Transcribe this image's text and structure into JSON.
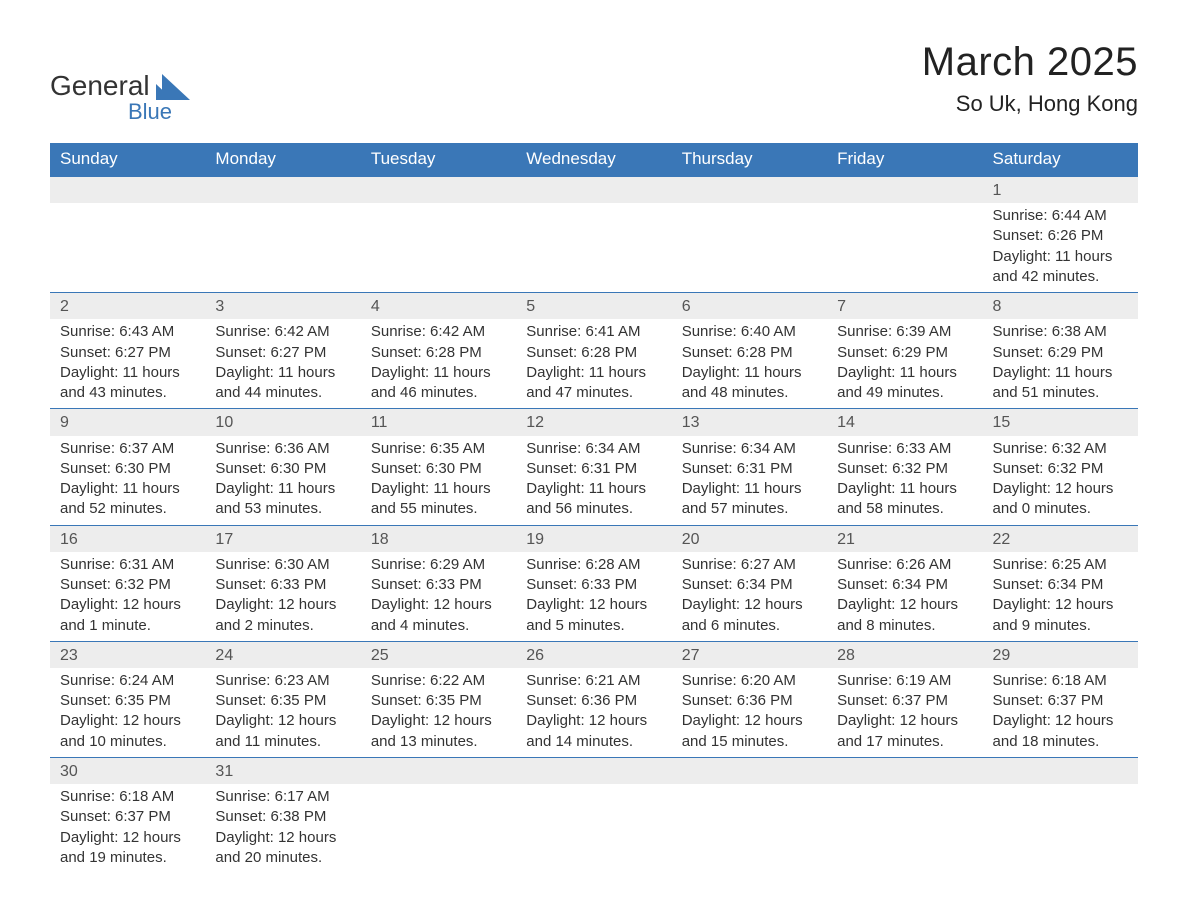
{
  "logo": {
    "text1": "General",
    "text2": "Blue",
    "blue": "#3a77b7"
  },
  "title": "March 2025",
  "subtitle": "So Uk, Hong Kong",
  "colors": {
    "header_bg": "#3a77b7",
    "header_text": "#ffffff",
    "daynum_bg": "#ededed",
    "cell_border": "#3a77b7",
    "body_text": "#333333",
    "page_bg": "#ffffff"
  },
  "day_headers": [
    "Sunday",
    "Monday",
    "Tuesday",
    "Wednesday",
    "Thursday",
    "Friday",
    "Saturday"
  ],
  "weeks": [
    [
      null,
      null,
      null,
      null,
      null,
      null,
      {
        "n": "1",
        "sunrise": "6:44 AM",
        "sunset": "6:26 PM",
        "daylight": "11 hours and 42 minutes."
      }
    ],
    [
      {
        "n": "2",
        "sunrise": "6:43 AM",
        "sunset": "6:27 PM",
        "daylight": "11 hours and 43 minutes."
      },
      {
        "n": "3",
        "sunrise": "6:42 AM",
        "sunset": "6:27 PM",
        "daylight": "11 hours and 44 minutes."
      },
      {
        "n": "4",
        "sunrise": "6:42 AM",
        "sunset": "6:28 PM",
        "daylight": "11 hours and 46 minutes."
      },
      {
        "n": "5",
        "sunrise": "6:41 AM",
        "sunset": "6:28 PM",
        "daylight": "11 hours and 47 minutes."
      },
      {
        "n": "6",
        "sunrise": "6:40 AM",
        "sunset": "6:28 PM",
        "daylight": "11 hours and 48 minutes."
      },
      {
        "n": "7",
        "sunrise": "6:39 AM",
        "sunset": "6:29 PM",
        "daylight": "11 hours and 49 minutes."
      },
      {
        "n": "8",
        "sunrise": "6:38 AM",
        "sunset": "6:29 PM",
        "daylight": "11 hours and 51 minutes."
      }
    ],
    [
      {
        "n": "9",
        "sunrise": "6:37 AM",
        "sunset": "6:30 PM",
        "daylight": "11 hours and 52 minutes."
      },
      {
        "n": "10",
        "sunrise": "6:36 AM",
        "sunset": "6:30 PM",
        "daylight": "11 hours and 53 minutes."
      },
      {
        "n": "11",
        "sunrise": "6:35 AM",
        "sunset": "6:30 PM",
        "daylight": "11 hours and 55 minutes."
      },
      {
        "n": "12",
        "sunrise": "6:34 AM",
        "sunset": "6:31 PM",
        "daylight": "11 hours and 56 minutes."
      },
      {
        "n": "13",
        "sunrise": "6:34 AM",
        "sunset": "6:31 PM",
        "daylight": "11 hours and 57 minutes."
      },
      {
        "n": "14",
        "sunrise": "6:33 AM",
        "sunset": "6:32 PM",
        "daylight": "11 hours and 58 minutes."
      },
      {
        "n": "15",
        "sunrise": "6:32 AM",
        "sunset": "6:32 PM",
        "daylight": "12 hours and 0 minutes."
      }
    ],
    [
      {
        "n": "16",
        "sunrise": "6:31 AM",
        "sunset": "6:32 PM",
        "daylight": "12 hours and 1 minute."
      },
      {
        "n": "17",
        "sunrise": "6:30 AM",
        "sunset": "6:33 PM",
        "daylight": "12 hours and 2 minutes."
      },
      {
        "n": "18",
        "sunrise": "6:29 AM",
        "sunset": "6:33 PM",
        "daylight": "12 hours and 4 minutes."
      },
      {
        "n": "19",
        "sunrise": "6:28 AM",
        "sunset": "6:33 PM",
        "daylight": "12 hours and 5 minutes."
      },
      {
        "n": "20",
        "sunrise": "6:27 AM",
        "sunset": "6:34 PM",
        "daylight": "12 hours and 6 minutes."
      },
      {
        "n": "21",
        "sunrise": "6:26 AM",
        "sunset": "6:34 PM",
        "daylight": "12 hours and 8 minutes."
      },
      {
        "n": "22",
        "sunrise": "6:25 AM",
        "sunset": "6:34 PM",
        "daylight": "12 hours and 9 minutes."
      }
    ],
    [
      {
        "n": "23",
        "sunrise": "6:24 AM",
        "sunset": "6:35 PM",
        "daylight": "12 hours and 10 minutes."
      },
      {
        "n": "24",
        "sunrise": "6:23 AM",
        "sunset": "6:35 PM",
        "daylight": "12 hours and 11 minutes."
      },
      {
        "n": "25",
        "sunrise": "6:22 AM",
        "sunset": "6:35 PM",
        "daylight": "12 hours and 13 minutes."
      },
      {
        "n": "26",
        "sunrise": "6:21 AM",
        "sunset": "6:36 PM",
        "daylight": "12 hours and 14 minutes."
      },
      {
        "n": "27",
        "sunrise": "6:20 AM",
        "sunset": "6:36 PM",
        "daylight": "12 hours and 15 minutes."
      },
      {
        "n": "28",
        "sunrise": "6:19 AM",
        "sunset": "6:37 PM",
        "daylight": "12 hours and 17 minutes."
      },
      {
        "n": "29",
        "sunrise": "6:18 AM",
        "sunset": "6:37 PM",
        "daylight": "12 hours and 18 minutes."
      }
    ],
    [
      {
        "n": "30",
        "sunrise": "6:18 AM",
        "sunset": "6:37 PM",
        "daylight": "12 hours and 19 minutes."
      },
      {
        "n": "31",
        "sunrise": "6:17 AM",
        "sunset": "6:38 PM",
        "daylight": "12 hours and 20 minutes."
      },
      null,
      null,
      null,
      null,
      null
    ]
  ],
  "labels": {
    "sunrise": "Sunrise: ",
    "sunset": "Sunset: ",
    "daylight": "Daylight: "
  }
}
